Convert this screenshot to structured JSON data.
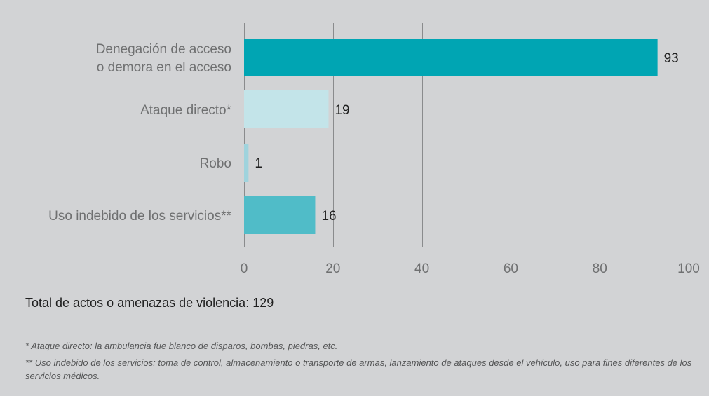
{
  "chart_data": {
    "type": "bar",
    "orientation": "horizontal",
    "categories": [
      [
        "Denegación de acceso",
        "o demora en el acceso"
      ],
      [
        "Ataque directo*"
      ],
      [
        "Robo"
      ],
      [
        "Uso indebido de los servicios**"
      ]
    ],
    "values": [
      93,
      19,
      1,
      16
    ],
    "colors": [
      "#00a5b3",
      "#c3e4e9",
      "#9fd3dd",
      "#50bcc8"
    ],
    "xlim": [
      0,
      100
    ],
    "xticks": [
      "0",
      "20",
      "40",
      "60",
      "80",
      "100"
    ],
    "grid": true,
    "title": "",
    "xlabel": "",
    "ylabel": ""
  },
  "total_text": "Total de actos o amenazas de violencia: 129",
  "notes": [
    "* Ataque directo: la ambulancia fue blanco de disparos, bombas, piedras, etc.",
    "** Uso indebido de los servicios: toma de control, almacenamiento o transporte de armas, lanzamiento de ataques desde el vehículo, uso para fines diferentes de los servicios médicos."
  ]
}
